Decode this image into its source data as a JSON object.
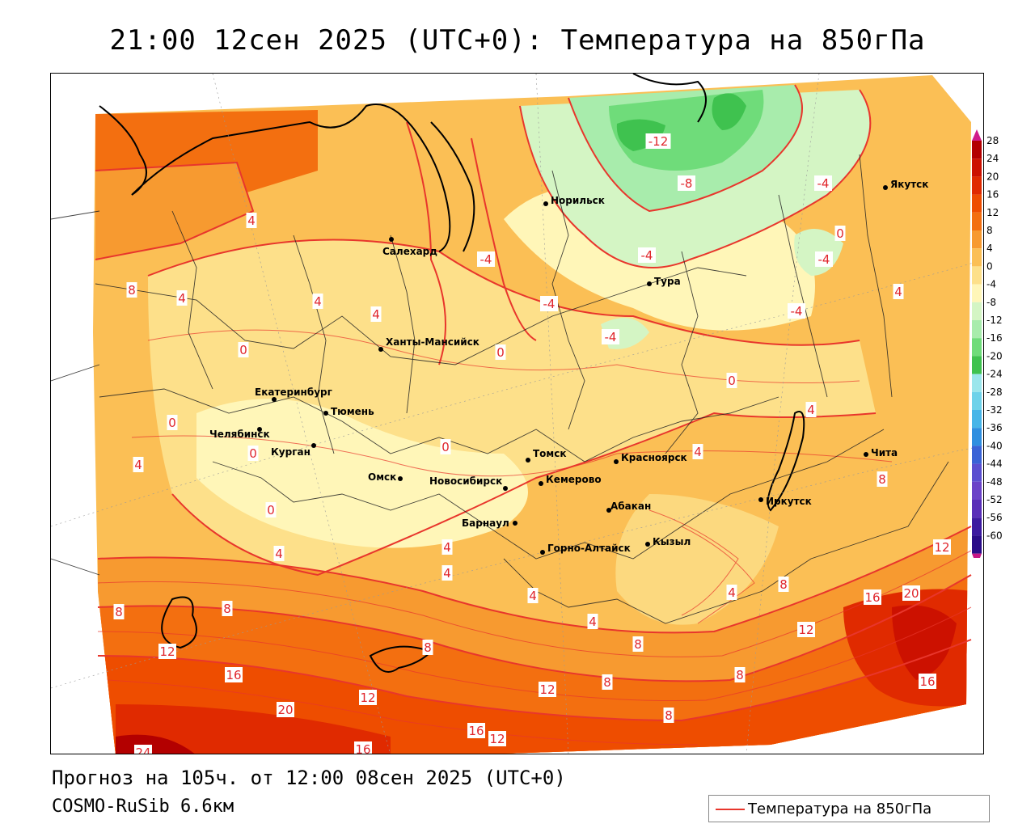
{
  "title": "21:00 12сен 2025 (UTC+0): Температура на 850гПа",
  "footer": {
    "forecast": "Прогноз на 105ч. от 12:00 08сен 2025 (UTC+0)",
    "model": "COSMO-RuSib 6.6км"
  },
  "legend": {
    "label": "Температура на 850гПа",
    "line_color": "#e8362c"
  },
  "colorbar": {
    "labels": [
      "28",
      "24",
      "20",
      "16",
      "12",
      "8",
      "4",
      "0",
      "-4",
      "-8",
      "-12",
      "-16",
      "-20",
      "-24",
      "-28",
      "-32",
      "-36",
      "-40",
      "-44",
      "-48",
      "-52",
      "-56",
      "-60"
    ],
    "colors": [
      "#b30000",
      "#cc1100",
      "#e02a00",
      "#ee4d00",
      "#f36f10",
      "#f79a30",
      "#fbbf55",
      "#fde08a",
      "#fff6b8",
      "#d4f5c4",
      "#a8ecac",
      "#6fdc7a",
      "#3fc24f",
      "#9be6ec",
      "#6ed2ea",
      "#47b5e8",
      "#2f8fe0",
      "#3a63d6",
      "#5b4fd0",
      "#6b43c8",
      "#5a2fb8",
      "#3d1aa0",
      "#2a0c88"
    ]
  },
  "cities": [
    {
      "name": "Салехард"
    },
    {
      "name": "Норильск"
    },
    {
      "name": "Якутск"
    },
    {
      "name": "Тура"
    },
    {
      "name": "Ханты-Мансийск"
    },
    {
      "name": "Екатеринбург"
    },
    {
      "name": "Тюмень"
    },
    {
      "name": "Челябинск"
    },
    {
      "name": "Курган"
    },
    {
      "name": "Омск"
    },
    {
      "name": "Новосибирск"
    },
    {
      "name": "Томск"
    },
    {
      "name": "Кемерово"
    },
    {
      "name": "Красноярск"
    },
    {
      "name": "Абакан"
    },
    {
      "name": "Барнаул"
    },
    {
      "name": "Горно-Алтайск"
    },
    {
      "name": "Кызыл"
    },
    {
      "name": "Иркутск"
    },
    {
      "name": "Чита"
    }
  ],
  "isolines": [
    "-12",
    "-8",
    "-4",
    "-4",
    "-4",
    "-4",
    "-4",
    "-4",
    "-4",
    "0",
    "0",
    "0",
    "0",
    "0",
    "0",
    "0",
    "0",
    "4",
    "4",
    "4",
    "4",
    "4",
    "4",
    "4",
    "4",
    "4",
    "4",
    "4",
    "4",
    "4",
    "4",
    "8",
    "8",
    "8",
    "8",
    "8",
    "8",
    "8",
    "8",
    "8",
    "8",
    "12",
    "12",
    "12",
    "12",
    "12",
    "12",
    "16",
    "16",
    "16",
    "16",
    "16",
    "20",
    "20",
    "24"
  ]
}
